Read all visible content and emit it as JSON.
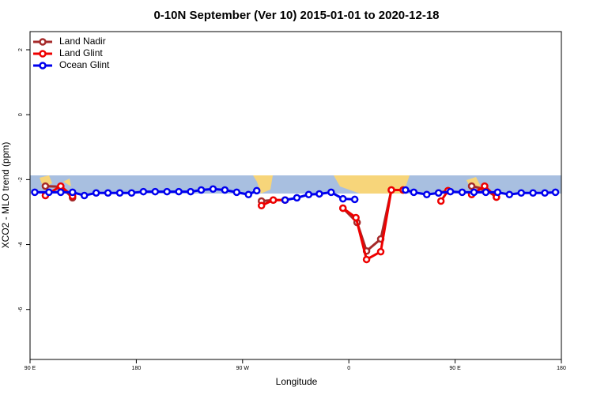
{
  "chart_data": {
    "type": "line",
    "title": "0-10N September (Ver 10)   2015-01-01 to 2020-12-18",
    "x_label": "Longitude",
    "y_label": "XCO2 - MLO trend (ppm)",
    "xlim": [
      90,
      540
    ],
    "xticks": [
      {
        "value": 90,
        "label": "90 E"
      },
      180,
      {
        "value": 270,
        "label": "90 W"
      },
      {
        "value": 360,
        "label": "0"
      },
      {
        "value": 450,
        "label": "90 E"
      },
      {
        "value": 540,
        "label": "180"
      }
    ],
    "ylim": [
      -7.54,
      2.56
    ],
    "yticks": [
      2,
      0,
      -2,
      -4,
      -6
    ],
    "legend": "top-left",
    "series": [
      {
        "name": "Land Nadir",
        "color": "#a52a2a",
        "x": [
          103,
          116,
          126,
          200,
          286,
          296,
          306,
          330,
          355,
          367,
          375,
          387,
          396,
          406,
          420,
          436,
          444,
          455,
          464,
          475,
          485
        ],
        "values": [
          -2.2,
          -2.22,
          -2.56,
          null,
          -2.66,
          -2.63,
          -2.63,
          null,
          -2.88,
          -3.32,
          -4.2,
          -3.83,
          -2.32,
          -2.32,
          null,
          -2.41,
          -2.34,
          null,
          -2.2,
          -2.29,
          -2.54
        ]
      },
      {
        "name": "Land Glint",
        "color": "#ee0000",
        "x": [
          103,
          116,
          126,
          200,
          286,
          296,
          306,
          330,
          355,
          366,
          375,
          387,
          396,
          406,
          420,
          438,
          444,
          455,
          464,
          475,
          485
        ],
        "values": [
          -2.49,
          -2.2,
          -2.51,
          null,
          -2.8,
          -2.63,
          -2.63,
          null,
          -2.88,
          -3.17,
          -4.46,
          -4.22,
          -2.32,
          -2.32,
          null,
          -2.66,
          -2.34,
          null,
          -2.46,
          -2.2,
          -2.54
        ]
      },
      {
        "name": "Ocean Glint",
        "color": "#0000ee",
        "x": [
          94,
          106,
          116,
          126,
          136,
          146,
          156,
          166,
          176,
          186,
          196,
          206,
          216,
          226,
          235,
          245,
          255,
          265,
          275,
          282,
          294,
          306,
          316,
          326,
          335,
          345,
          355,
          365,
          386,
          408,
          415,
          426,
          436,
          446,
          456,
          466,
          476,
          486,
          496,
          506,
          516,
          526,
          535
        ],
        "values": [
          -2.39,
          -2.39,
          -2.39,
          -2.39,
          -2.49,
          -2.41,
          -2.41,
          -2.41,
          -2.41,
          -2.37,
          -2.37,
          -2.37,
          -2.37,
          -2.37,
          -2.32,
          -2.29,
          -2.32,
          -2.39,
          -2.46,
          -2.34,
          null,
          -2.63,
          -2.56,
          -2.46,
          -2.44,
          -2.39,
          -2.59,
          -2.61,
          null,
          -2.32,
          -2.39,
          -2.46,
          -2.41,
          -2.37,
          -2.39,
          -2.39,
          -2.39,
          -2.39,
          -2.46,
          -2.41,
          -2.41,
          -2.41,
          -2.39
        ]
      }
    ]
  }
}
